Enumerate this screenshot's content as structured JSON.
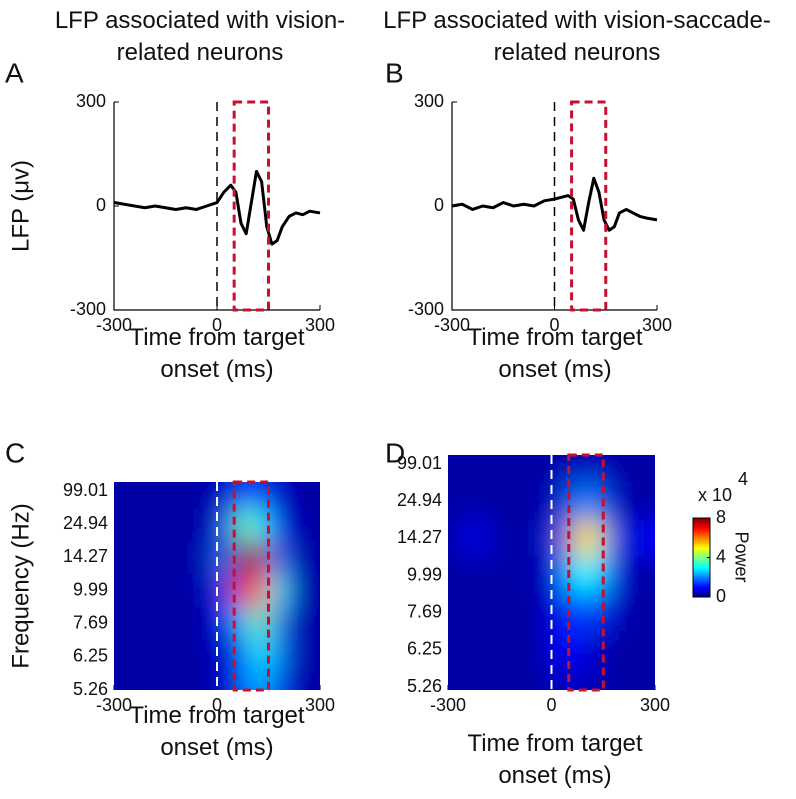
{
  "chart_data": [
    {
      "type": "line",
      "panel": "A",
      "title": "LFP associated with vision-related neurons",
      "ylabel": "LFP (μv)",
      "xlabel": "Time from target onset (ms)",
      "x": [
        -300,
        -270,
        -240,
        -210,
        -180,
        -150,
        -120,
        -90,
        -60,
        -30,
        0,
        20,
        40,
        55,
        70,
        85,
        100,
        115,
        130,
        145,
        160,
        175,
        190,
        210,
        230,
        250,
        270,
        300
      ],
      "values": [
        10,
        5,
        0,
        -5,
        0,
        -5,
        -10,
        -5,
        -10,
        0,
        10,
        40,
        60,
        40,
        -50,
        -80,
        10,
        100,
        70,
        -60,
        -110,
        -100,
        -60,
        -30,
        -20,
        -25,
        -15,
        -20
      ],
      "color": "#000000",
      "xlim": [
        -300,
        300
      ],
      "xticks": [
        -300,
        0,
        300
      ],
      "ylim": [
        -300,
        300
      ],
      "yticks": [
        -300,
        0,
        300
      ],
      "onset_x": 0,
      "window_x": [
        50,
        150
      ],
      "window_color": "#c8102e"
    },
    {
      "type": "line",
      "panel": "B",
      "title": "LFP associated with vision-saccade-related neurons",
      "xlabel": "Time from target onset (ms)",
      "x": [
        -300,
        -270,
        -240,
        -210,
        -180,
        -150,
        -120,
        -90,
        -60,
        -30,
        0,
        20,
        40,
        55,
        70,
        85,
        100,
        115,
        130,
        145,
        160,
        175,
        190,
        210,
        230,
        250,
        270,
        300
      ],
      "values": [
        0,
        5,
        -10,
        0,
        -5,
        10,
        0,
        5,
        0,
        15,
        20,
        25,
        30,
        20,
        -40,
        -70,
        10,
        80,
        40,
        -40,
        -70,
        -60,
        -20,
        -10,
        -20,
        -30,
        -35,
        -40
      ],
      "color": "#000000",
      "xlim": [
        -300,
        300
      ],
      "xticks": [
        -300,
        0,
        300
      ],
      "ylim": [
        -300,
        300
      ],
      "yticks": [
        -300,
        0,
        300
      ],
      "onset_x": 0,
      "window_x": [
        50,
        150
      ],
      "window_color": "#c8102e"
    },
    {
      "type": "heatmap",
      "panel": "C",
      "ylabel": "Frequency (Hz)",
      "xlabel": "Time from target onset (ms)",
      "x": [
        -275,
        -225,
        -175,
        -125,
        -75,
        -25,
        25,
        75,
        125,
        175,
        225,
        275
      ],
      "y_categories": [
        "99.01",
        "24.94",
        "14.27",
        "9.99",
        "7.69",
        "6.25",
        "5.26"
      ],
      "values": [
        [
          0.3,
          0.3,
          0.3,
          0.3,
          0.3,
          0.3,
          0.6,
          1.5,
          1.5,
          0.6,
          0.3,
          0.3
        ],
        [
          0.3,
          0.3,
          0.3,
          0.3,
          0.3,
          0.3,
          1.5,
          4,
          3,
          1,
          0.3,
          0.3
        ],
        [
          0.3,
          0.3,
          0.3,
          0.3,
          0.3,
          0.4,
          2,
          8,
          7.5,
          2,
          0.4,
          0.3
        ],
        [
          0.3,
          0.3,
          0.3,
          0.3,
          0.3,
          0.4,
          1.5,
          6.5,
          7,
          3,
          0.5,
          0.3
        ],
        [
          0.3,
          0.3,
          0.3,
          0.3,
          0.3,
          0.3,
          1,
          2.5,
          4,
          2,
          0.4,
          0.3
        ],
        [
          0.3,
          0.3,
          0.3,
          0.3,
          0.3,
          0.3,
          0.6,
          1.5,
          3,
          2,
          0.4,
          0.3
        ],
        [
          0.3,
          0.3,
          0.3,
          0.3,
          0.3,
          0.3,
          0.6,
          1.5,
          2.5,
          1.5,
          0.4,
          0.3
        ]
      ],
      "xlim": [
        -300,
        300
      ],
      "xticks": [
        -300,
        0,
        300
      ],
      "clim": [
        0,
        8
      ],
      "onset_x": 0,
      "window_x": [
        50,
        150
      ],
      "window_color": "#c8102e"
    },
    {
      "type": "heatmap",
      "panel": "D",
      "xlabel": "Time from target onset (ms)",
      "x": [
        -275,
        -225,
        -175,
        -125,
        -75,
        -25,
        25,
        75,
        125,
        175,
        225,
        275
      ],
      "y_categories": [
        "99.01",
        "24.94",
        "14.27",
        "9.99",
        "7.69",
        "6.25",
        "5.26"
      ],
      "values": [
        [
          0.3,
          0.3,
          0.3,
          0.3,
          0.3,
          0.3,
          0.3,
          0.5,
          0.5,
          0.3,
          0.3,
          0.3
        ],
        [
          0.3,
          0.3,
          0.3,
          0.3,
          0.3,
          0.3,
          0.6,
          2,
          2,
          0.6,
          0.3,
          0.3
        ],
        [
          0.3,
          1,
          0.4,
          0.3,
          0.3,
          0.4,
          1.5,
          5.5,
          5,
          1.5,
          0.4,
          1
        ],
        [
          0.3,
          0.3,
          0.3,
          0.3,
          0.3,
          0.4,
          1.2,
          3,
          3,
          1.2,
          0.3,
          0.3
        ],
        [
          0.3,
          0.3,
          0.3,
          0.3,
          0.3,
          0.3,
          1,
          1.5,
          1.5,
          0.6,
          0.3,
          0.3
        ],
        [
          0.3,
          0.3,
          0.3,
          0.3,
          0.3,
          0.3,
          1,
          1,
          0.5,
          0.3,
          0.3,
          0.3
        ],
        [
          0.3,
          0.3,
          0.3,
          0.3,
          0.3,
          0.3,
          0.5,
          0.5,
          0.4,
          0.3,
          0.3,
          0.3
        ]
      ],
      "xlim": [
        -300,
        300
      ],
      "xticks": [
        -300,
        0,
        300
      ],
      "clim": [
        0,
        8
      ],
      "onset_x": 0,
      "window_x": [
        50,
        150
      ],
      "window_color": "#c8102e",
      "colorbar": {
        "label": "Power",
        "scale": "x 10",
        "exponent": "4",
        "ticks": [
          0,
          4,
          8
        ]
      }
    }
  ]
}
